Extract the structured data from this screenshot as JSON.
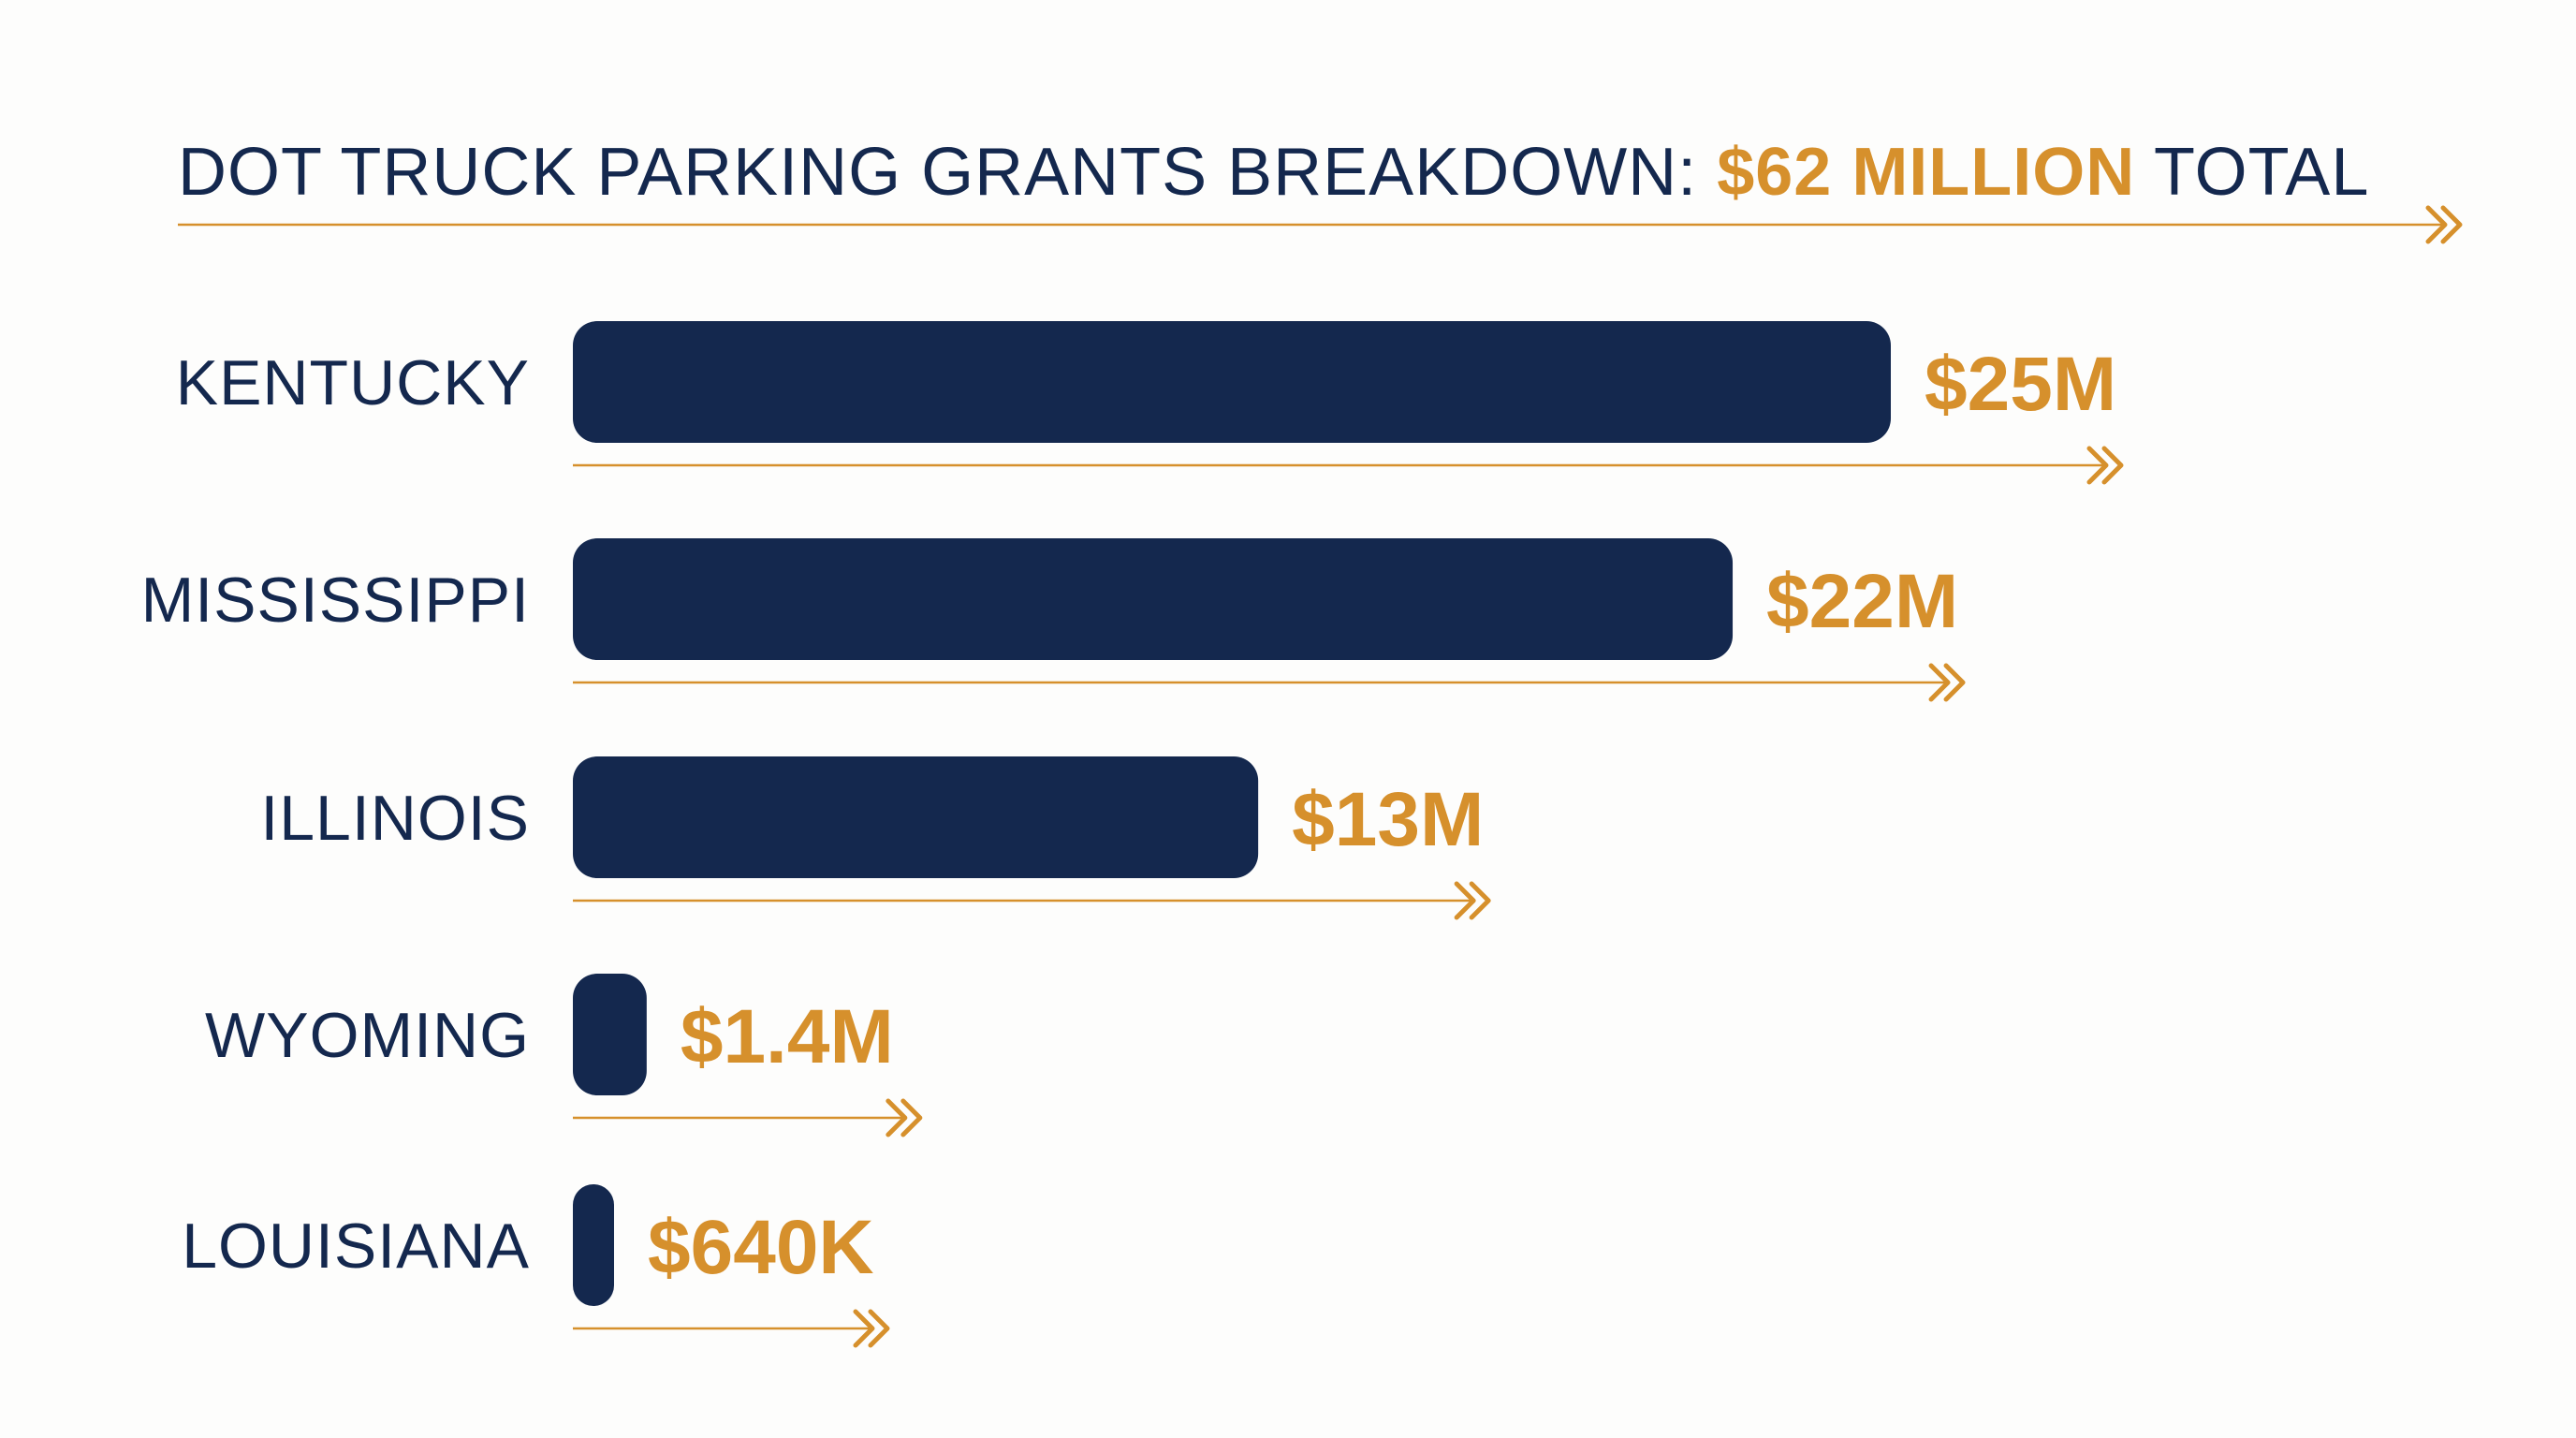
{
  "colors": {
    "navy": "#14284e",
    "gold": "#d6902c",
    "background": "#fdfdfc"
  },
  "title": {
    "prefix": "DOT TRUCK PARKING GRANTS BREAKDOWN: ",
    "highlight": "$62 MILLION",
    "suffix": " TOTAL"
  },
  "chart_data": {
    "type": "bar",
    "orientation": "horizontal",
    "title": "DOT TRUCK PARKING GRANTS BREAKDOWN: $62 MILLION TOTAL",
    "xlabel": "",
    "ylabel": "",
    "categories": [
      "KENTUCKY",
      "MISSISSIPPI",
      "ILLINOIS",
      "WYOMING",
      "LOUISIANA"
    ],
    "values": [
      25,
      22,
      13,
      1.4,
      0.64
    ],
    "value_labels": [
      "$25M",
      "$22M",
      "$13M",
      "$1.4M",
      "$640K"
    ],
    "unit": "millions of dollars",
    "xlim": [
      0,
      25
    ],
    "grid": false,
    "legend": "none"
  }
}
